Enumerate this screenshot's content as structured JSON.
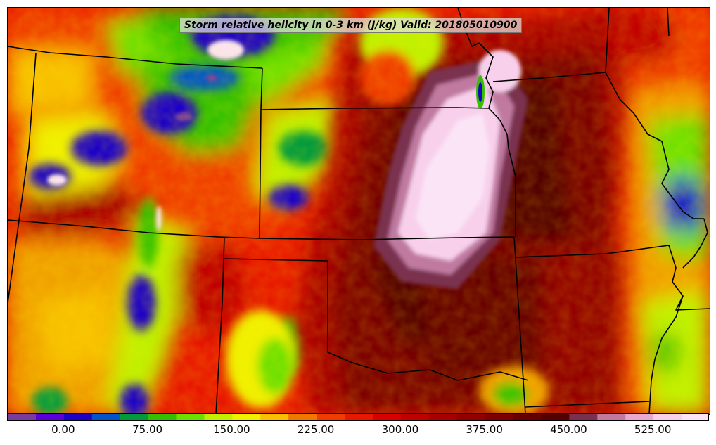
{
  "title": "Storm relative helicity in 0-3 km (J/kg) Valid: 201805010900",
  "colorbar": {
    "colors": [
      "#7a3c9c",
      "#5a00d6",
      "#1c00c8",
      "#0054c8",
      "#009a3c",
      "#34c000",
      "#6ee000",
      "#c0f000",
      "#f0f000",
      "#f8c000",
      "#f07800",
      "#f03c00",
      "#e81800",
      "#d80000",
      "#c00000",
      "#a80000",
      "#920000",
      "#7c0000",
      "#660000",
      "#520000",
      "#7a3050",
      "#c07aa0",
      "#e8a8d0",
      "#f8d0ec",
      "#fbe4f6"
    ],
    "tick_labels": [
      "0.00",
      "75.00",
      "150.00",
      "225.00",
      "300.00",
      "375.00",
      "450.00",
      "525.00"
    ]
  }
}
